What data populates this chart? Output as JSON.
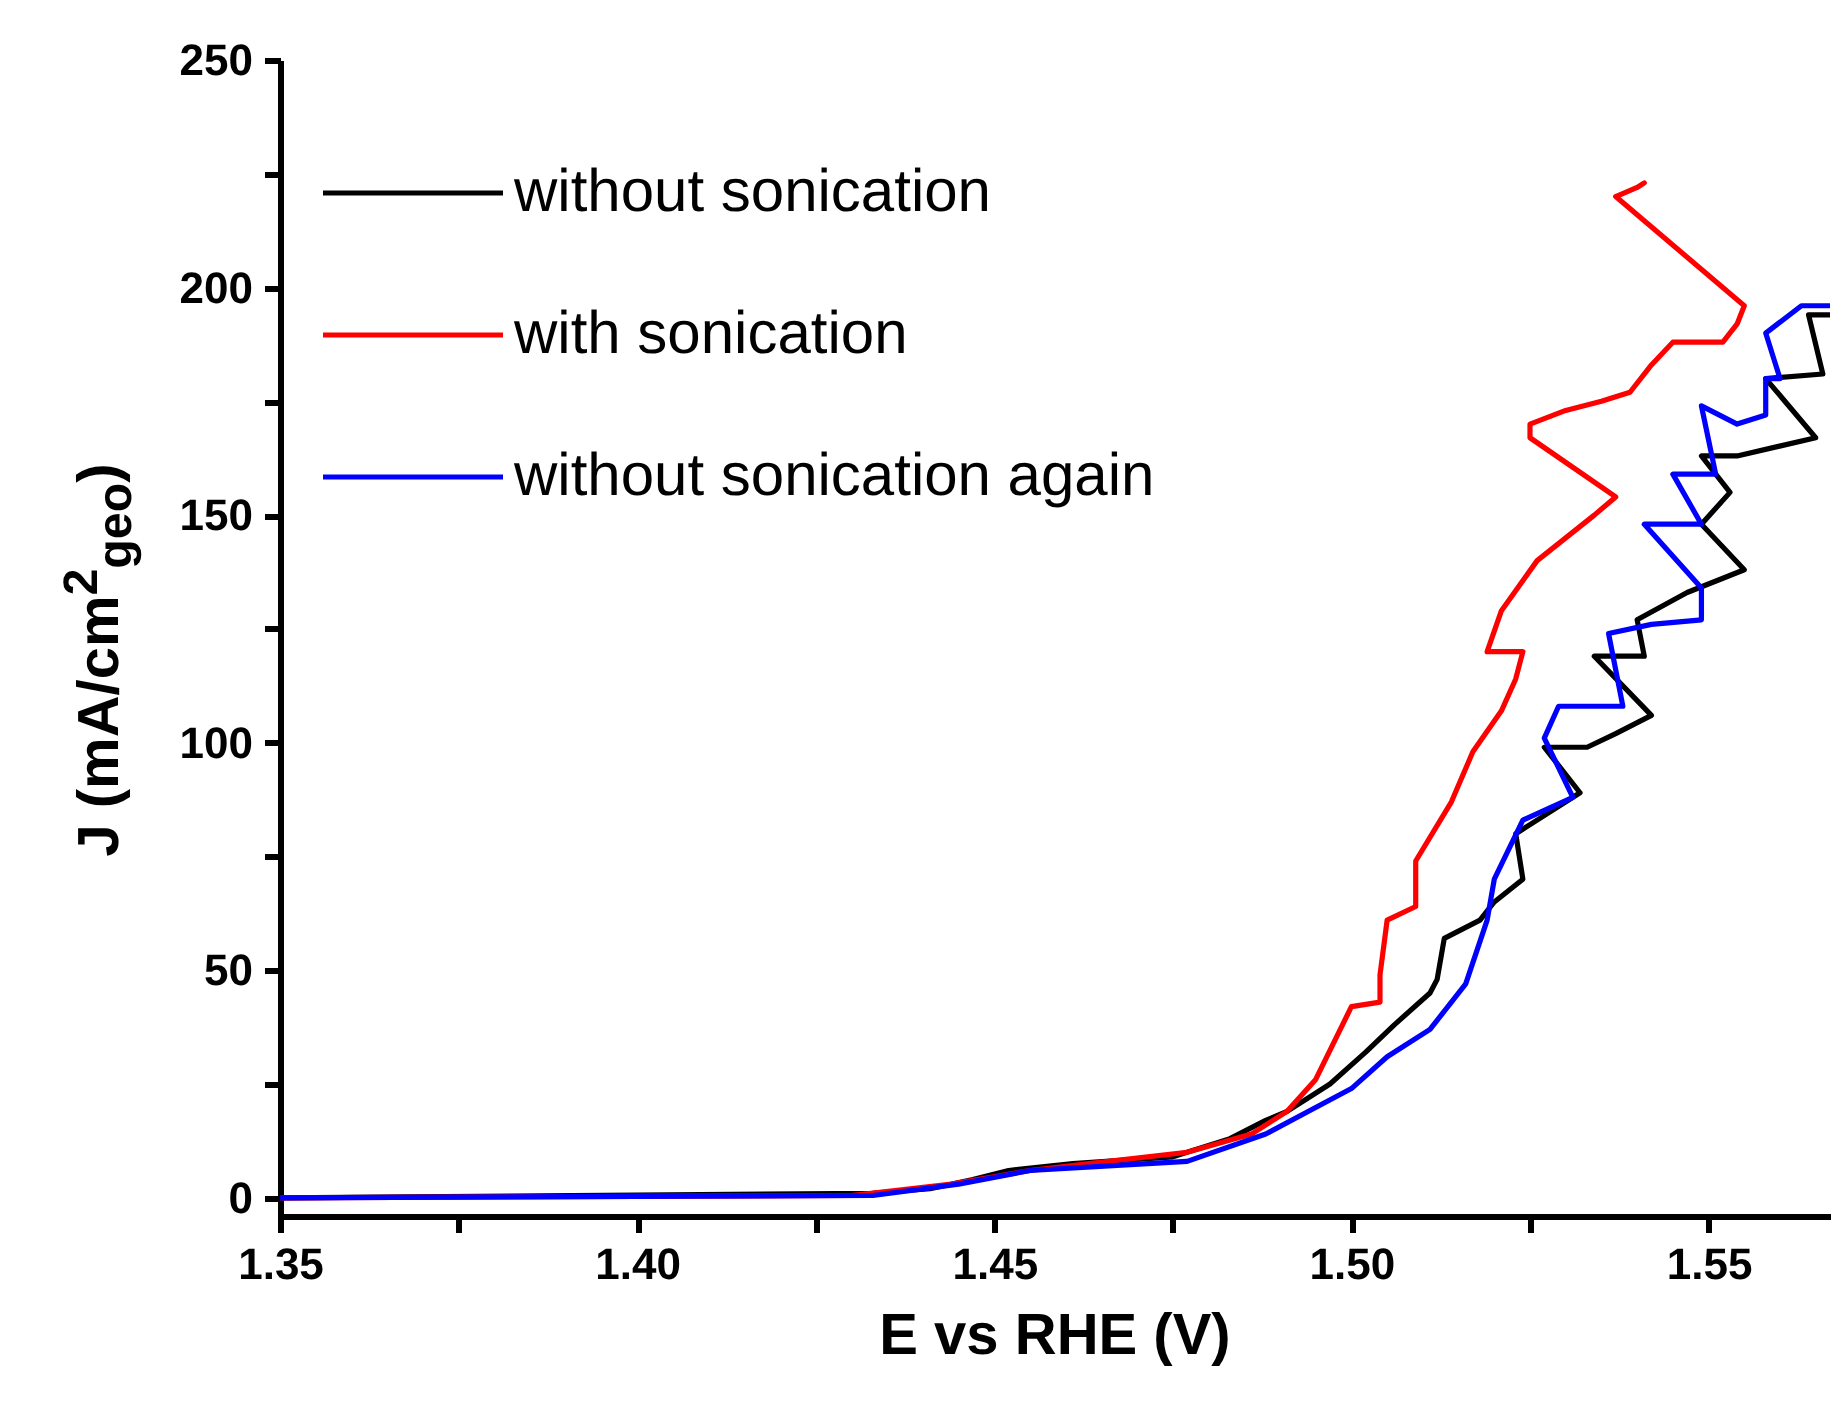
{
  "chart_data": {
    "type": "line",
    "xlabel": "E vs RHE (V)",
    "ylabel": "J (mA/cm$^{2}$$_{geo}$)",
    "xlim": [
      1.35,
      1.567
    ],
    "ylim": [
      -4,
      250
    ],
    "xticks": [
      1.35,
      {
        "value": 1.375,
        "label": null
      },
      {
        "value": 1.4,
        "label": "1.40"
      },
      {
        "value": 1.425,
        "label": null
      },
      1.45,
      {
        "value": 1.475,
        "label": null
      },
      {
        "value": 1.5,
        "label": "1.50"
      },
      {
        "value": 1.525,
        "label": null
      },
      1.55
    ],
    "yticks": [
      0,
      {
        "value": 25,
        "label": null
      },
      50,
      {
        "value": 75,
        "label": null
      },
      100,
      {
        "value": 125,
        "label": null
      },
      150,
      {
        "value": 175,
        "label": null
      },
      200,
      {
        "value": 225,
        "label": null
      },
      250
    ],
    "grid": false,
    "legend": "top left",
    "line_style": "solid",
    "marker": "none",
    "series": [
      {
        "name": "without sonication",
        "color": "#000000",
        "x": [
          1.35,
          1.433,
          1.441,
          1.447,
          1.452,
          1.461,
          1.475,
          1.483,
          1.488,
          1.491,
          1.497,
          1.502,
          1.506,
          1.511,
          1.512,
          1.513,
          1.518,
          1.52,
          1.524,
          1.523,
          1.525,
          1.532,
          1.527,
          1.533,
          1.537,
          1.542,
          1.534,
          1.541,
          1.54,
          1.547,
          1.555,
          1.549,
          1.553,
          1.549,
          1.554,
          1.565,
          1.558,
          1.566,
          1.564,
          1.567
        ],
        "values": [
          0,
          1,
          2,
          4,
          6,
          7.5,
          9,
          13,
          17,
          19,
          25,
          32,
          38,
          45,
          48,
          57,
          61,
          65,
          70,
          80,
          82,
          89,
          99,
          99,
          102,
          106,
          119,
          119,
          127,
          133,
          138,
          148,
          155,
          163,
          163,
          167,
          180,
          181,
          194,
          194
        ]
      },
      {
        "name": "with sonication",
        "color": "#ff0000",
        "x": [
          1.35,
          1.43,
          1.444,
          1.455,
          1.466,
          1.477,
          1.486,
          1.491,
          1.495,
          1.5,
          1.504,
          1.504,
          1.505,
          1.509,
          1.509,
          1.514,
          1.517,
          1.521,
          1.523,
          1.524,
          1.519,
          1.521,
          1.526,
          1.53,
          1.534,
          1.537,
          1.525,
          1.525,
          1.53,
          1.535,
          1.539,
          1.542,
          1.545,
          1.552,
          1.554,
          1.555,
          1.537,
          1.54,
          1.541
        ],
        "values": [
          0,
          0.5,
          3,
          6,
          8,
          10,
          14,
          19,
          26,
          42,
          43,
          49,
          61,
          64,
          74,
          87,
          98,
          107,
          114,
          120,
          120,
          129,
          140,
          145,
          150,
          154,
          167,
          170,
          173,
          175,
          177,
          183,
          188,
          188,
          192,
          196,
          220,
          222,
          223
        ]
      },
      {
        "name": "without sonication again",
        "color": "#0000ff",
        "x": [
          1.35,
          1.433,
          1.445,
          1.455,
          1.466,
          1.477,
          1.488,
          1.494,
          1.5,
          1.505,
          1.511,
          1.516,
          1.519,
          1.52,
          1.524,
          1.531,
          1.527,
          1.529,
          1.538,
          1.536,
          1.542,
          1.549,
          1.549,
          1.541,
          1.549,
          1.545,
          1.551,
          1.549,
          1.554,
          1.558,
          1.558,
          1.56,
          1.558,
          1.563,
          1.567
        ],
        "values": [
          0,
          0.5,
          3,
          6,
          7,
          8,
          14,
          19,
          24,
          31,
          37,
          47,
          61,
          70,
          83,
          88,
          101,
          108,
          108,
          124,
          126,
          127,
          134,
          148,
          148,
          159,
          159,
          174,
          170,
          172,
          180,
          180,
          190,
          196,
          196
        ]
      }
    ]
  }
}
